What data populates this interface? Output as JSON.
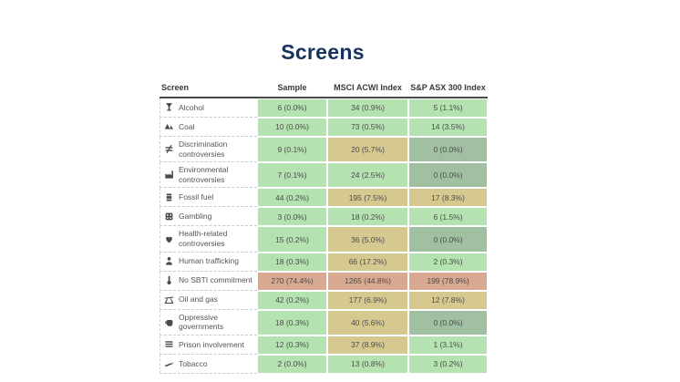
{
  "title": "Screens",
  "colors": {
    "green": "#b5e2b1",
    "tan": "#d6c98f",
    "zero": "#a1c0a2",
    "salmon": "#d9a890",
    "title_text": "#17335d",
    "cell_text": "#4c4c4c"
  },
  "chart_data": {
    "type": "table",
    "title": "Screens",
    "columns": [
      "Screen",
      "Sample",
      "MSCI ACWI Index",
      "S&P ASX 300 Index"
    ],
    "legend_note": "cell color encodes exposure level: green=low, tan=elevated, gray-green=zero, salmon=high",
    "rows": [
      {
        "icon": "alcohol-icon",
        "label": "Alcohol",
        "cells": [
          {
            "text": "6 (0.0%)",
            "level": "green"
          },
          {
            "text": "34 (0.9%)",
            "level": "green"
          },
          {
            "text": "5 (1.1%)",
            "level": "green"
          }
        ]
      },
      {
        "icon": "coal-icon",
        "label": "Coal",
        "cells": [
          {
            "text": "10 (0.0%)",
            "level": "green"
          },
          {
            "text": "73 (0.5%)",
            "level": "green"
          },
          {
            "text": "14 (3.5%)",
            "level": "green"
          }
        ]
      },
      {
        "icon": "discrimination-icon",
        "label": "Discrimination controversies",
        "cells": [
          {
            "text": "9 (0.1%)",
            "level": "green"
          },
          {
            "text": "20 (5.7%)",
            "level": "tan"
          },
          {
            "text": "0 (0.0%)",
            "level": "zero"
          }
        ]
      },
      {
        "icon": "environment-icon",
        "label": "Environmental controversies",
        "cells": [
          {
            "text": "7 (0.1%)",
            "level": "green"
          },
          {
            "text": "24 (2.5%)",
            "level": "green"
          },
          {
            "text": "0 (0.0%)",
            "level": "zero"
          }
        ]
      },
      {
        "icon": "fossil-fuel-icon",
        "label": "Fossil fuel",
        "cells": [
          {
            "text": "44 (0.2%)",
            "level": "green"
          },
          {
            "text": "195 (7.5%)",
            "level": "tan"
          },
          {
            "text": "17 (8.3%)",
            "level": "tan"
          }
        ]
      },
      {
        "icon": "gambling-icon",
        "label": "Gambling",
        "cells": [
          {
            "text": "3 (0.0%)",
            "level": "green"
          },
          {
            "text": "18 (0.2%)",
            "level": "green"
          },
          {
            "text": "6 (1.5%)",
            "level": "green"
          }
        ]
      },
      {
        "icon": "health-icon",
        "label": "Health-related controversies",
        "cells": [
          {
            "text": "15 (0.2%)",
            "level": "green"
          },
          {
            "text": "36 (5.0%)",
            "level": "tan"
          },
          {
            "text": "0 (0.0%)",
            "level": "zero"
          }
        ]
      },
      {
        "icon": "human-trafficking-icon",
        "label": "Human trafficking",
        "cells": [
          {
            "text": "18 (0.3%)",
            "level": "green"
          },
          {
            "text": "66 (17.2%)",
            "level": "tan"
          },
          {
            "text": "2 (0.3%)",
            "level": "green"
          }
        ]
      },
      {
        "icon": "no-sbti-icon",
        "label": "No SBTI commitment",
        "cells": [
          {
            "text": "270 (74.4%)",
            "level": "salmon"
          },
          {
            "text": "1265 (44.8%)",
            "level": "salmon"
          },
          {
            "text": "199 (78.9%)",
            "level": "salmon"
          }
        ]
      },
      {
        "icon": "oil-gas-icon",
        "label": "Oil and gas",
        "cells": [
          {
            "text": "42 (0.2%)",
            "level": "green"
          },
          {
            "text": "177 (6.9%)",
            "level": "tan"
          },
          {
            "text": "12 (7.8%)",
            "level": "tan"
          }
        ]
      },
      {
        "icon": "oppressive-governments-icon",
        "label": "Oppressive governments",
        "cells": [
          {
            "text": "18 (0.3%)",
            "level": "green"
          },
          {
            "text": "40 (5.6%)",
            "level": "tan"
          },
          {
            "text": "0 (0.0%)",
            "level": "zero"
          }
        ]
      },
      {
        "icon": "prison-icon",
        "label": "Prison involvement",
        "cells": [
          {
            "text": "12 (0.3%)",
            "level": "green"
          },
          {
            "text": "37 (8.9%)",
            "level": "tan"
          },
          {
            "text": "1 (3.1%)",
            "level": "green"
          }
        ]
      },
      {
        "icon": "tobacco-icon",
        "label": "Tobacco",
        "cells": [
          {
            "text": "2 (0.0%)",
            "level": "green"
          },
          {
            "text": "13 (0.8%)",
            "level": "green"
          },
          {
            "text": "3 (0.2%)",
            "level": "green"
          }
        ]
      }
    ]
  }
}
